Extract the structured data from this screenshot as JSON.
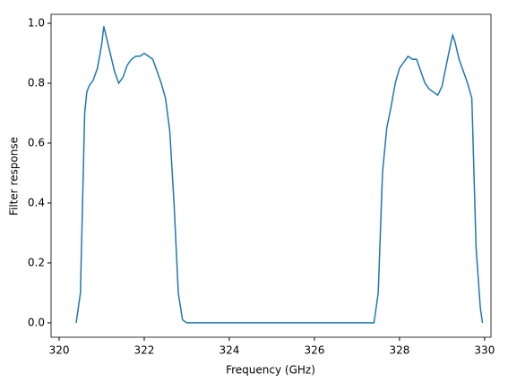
{
  "chart_data": {
    "type": "line",
    "xlabel": "Frequency (GHz)",
    "ylabel": "Filter response",
    "x": [
      320.4,
      320.5,
      320.55,
      320.6,
      320.65,
      320.7,
      320.8,
      320.9,
      321.0,
      321.05,
      321.1,
      321.2,
      321.3,
      321.4,
      321.5,
      321.6,
      321.7,
      321.8,
      321.9,
      322.0,
      322.1,
      322.2,
      322.3,
      322.4,
      322.5,
      322.6,
      322.7,
      322.8,
      322.9,
      323.0,
      327.4,
      327.5,
      327.6,
      327.7,
      327.8,
      327.9,
      328.0,
      328.1,
      328.2,
      328.3,
      328.4,
      328.5,
      328.6,
      328.7,
      328.8,
      328.9,
      329.0,
      329.1,
      329.2,
      329.25,
      329.3,
      329.4,
      329.5,
      329.6,
      329.7,
      329.75,
      329.8,
      329.9,
      329.95
    ],
    "series": [
      {
        "color": "#1f77b4",
        "values": [
          0,
          0.1,
          0.4,
          0.7,
          0.77,
          0.79,
          0.81,
          0.85,
          0.93,
          0.99,
          0.96,
          0.9,
          0.84,
          0.8,
          0.82,
          0.86,
          0.88,
          0.89,
          0.89,
          0.9,
          0.89,
          0.88,
          0.84,
          0.8,
          0.75,
          0.64,
          0.4,
          0.1,
          0.01,
          0,
          0,
          0.1,
          0.5,
          0.65,
          0.72,
          0.8,
          0.85,
          0.87,
          0.89,
          0.88,
          0.88,
          0.84,
          0.8,
          0.78,
          0.77,
          0.76,
          0.79,
          0.86,
          0.93,
          0.96,
          0.94,
          0.88,
          0.84,
          0.8,
          0.75,
          0.5,
          0.25,
          0.05,
          0
        ]
      }
    ],
    "xlim": [
      319.81,
      330.15
    ],
    "ylim": [
      -0.048,
      1.03
    ],
    "xticks": [
      320,
      322,
      324,
      326,
      328,
      330
    ],
    "yticks": [
      {
        "value": 0,
        "label": "0.0"
      },
      0.2,
      0.4,
      0.6,
      0.8,
      {
        "value": 1,
        "label": "1.0"
      }
    ]
  }
}
